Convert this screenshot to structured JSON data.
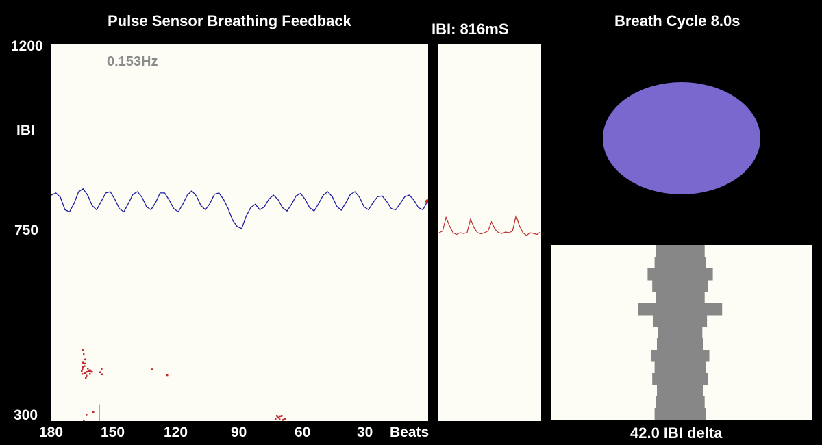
{
  "header": {
    "title": "Pulse Sensor Breathing Feedback",
    "ibi_readout": "IBI: 816mS",
    "breath_cycle": "Breath Cycle 8.0s"
  },
  "main_plot": {
    "frequency_label": "0.153Hz",
    "y_axis": {
      "label": "IBI",
      "top_label": "1200",
      "mid_label": "750",
      "bottom_label": "300"
    },
    "x_axis": {
      "labels": [
        "180",
        "150",
        "120",
        "90",
        "60",
        "30"
      ],
      "unit_label": "Beats"
    }
  },
  "histogram": {
    "caption": "42.0 IBI delta"
  },
  "colors": {
    "background": "#000000",
    "panel": "#fdfdf6",
    "ibi_line": "#1a1aa0",
    "pulse_line": "#c0282a",
    "scatter": "#c0282a",
    "axis_ticks": "#a020a0",
    "breath_ellipse": "#7b68cf",
    "histogram_bars": "#878787",
    "frequency_text": "#8a8a8a"
  },
  "chart_data": [
    {
      "type": "line",
      "series": [
        {
          "values": [
            840,
            845,
            835,
            805,
            800,
            820,
            848,
            855,
            840,
            815,
            805,
            825,
            845,
            848,
            830,
            808,
            800,
            820,
            842,
            848,
            835,
            812,
            805,
            822,
            845,
            845,
            828,
            808,
            800,
            818,
            840,
            850,
            838,
            815,
            805,
            820,
            842,
            845,
            830,
            808,
            780,
            765,
            760,
            790,
            810,
            818,
            805,
            812,
            830,
            840,
            830,
            810,
            802,
            818,
            838,
            844,
            830,
            810,
            802,
            820,
            840,
            848,
            836,
            813,
            804,
            822,
            842,
            848,
            835,
            812,
            805,
            822,
            836,
            838,
            825,
            808,
            805,
            820,
            836,
            840,
            828,
            810,
            805,
            825
          ]
        },
        {
          "values": [
            470,
            460,
            440,
            448,
            432,
            430,
            438,
            426,
            420,
            425,
            416,
            409,
            420,
            415,
            413,
            425,
            412,
            417,
            424,
            410,
            408,
            422,
            418,
            413,
            404,
            418,
            420,
            322,
            316,
            301,
            313,
            313,
            304,
            305,
            306,
            303,
            312,
            308,
            310,
            304
          ]
        }
      ],
      "ylim": [
        300,
        1200
      ],
      "xlim": [
        180,
        0
      ]
    },
    {
      "type": "line",
      "series": [
        {
          "values": [
            0.5,
            0.55,
            0.95,
            0.7,
            0.5,
            0.45,
            0.5,
            0.48,
            0.5,
            0.9,
            0.65,
            0.5,
            0.47,
            0.5,
            0.55,
            0.82,
            0.6,
            0.5,
            0.48,
            0.52,
            0.5,
            0.55,
            1.0,
            0.7,
            0.5,
            0.42,
            0.5,
            0.48,
            0.45,
            0.52
          ]
        }
      ]
    },
    {
      "type": "bar",
      "values": [
        42,
        42,
        44,
        44,
        56,
        56,
        48,
        48,
        42,
        42,
        72,
        72,
        46,
        46,
        38,
        38,
        40,
        40,
        50,
        50,
        44,
        44,
        48,
        48,
        40,
        40,
        42,
        42,
        44,
        44
      ]
    }
  ]
}
